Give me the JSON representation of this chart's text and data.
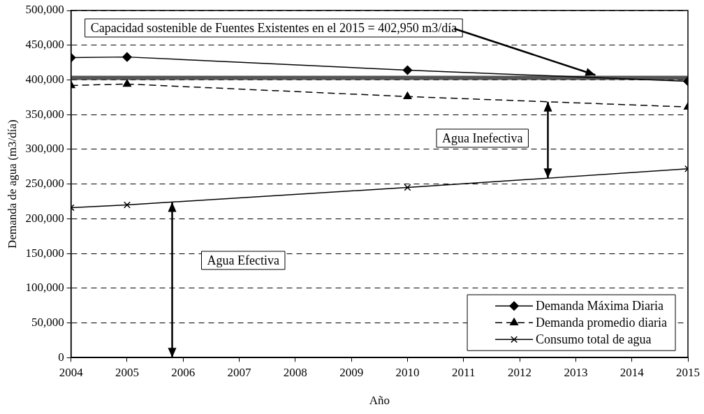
{
  "chart_data": {
    "type": "line",
    "xlabel": "Año",
    "ylabel": "Demanda de agua (m3/día)",
    "x": [
      2004,
      2005,
      2010,
      2015
    ],
    "xlim": [
      2004,
      2015
    ],
    "xticks": [
      2004,
      2005,
      2006,
      2007,
      2008,
      2009,
      2010,
      2011,
      2012,
      2013,
      2014,
      2015
    ],
    "ylim": [
      0,
      500000
    ],
    "yticks": [
      0,
      {
        "value": 50000,
        "label": "50,000"
      },
      {
        "value": 100000,
        "label": "100,000"
      },
      {
        "value": 150000,
        "label": "150,000"
      },
      {
        "value": 200000,
        "label": "200,000"
      },
      {
        "value": 250000,
        "label": "250,000"
      },
      {
        "value": 300000,
        "label": "300,000"
      },
      {
        "value": 350000,
        "label": "350,000"
      },
      {
        "value": 400000,
        "label": "400,000"
      },
      {
        "value": 450000,
        "label": "450,000"
      },
      {
        "value": 500000,
        "label": "500,000"
      }
    ],
    "grid": "y",
    "legend": "bottom right",
    "series": [
      {
        "name": "Demanda Máxima Diaria",
        "color": "#000000",
        "marker": "diamond",
        "line_style": "solid",
        "values": [
          432000,
          433000,
          414000,
          398000
        ]
      },
      {
        "name": "Demanda promedio diaria",
        "color": "#000000",
        "marker": "triangle",
        "line_style": "dashed",
        "values": [
          392000,
          394000,
          376000,
          361000
        ]
      },
      {
        "name": "Consumo total de agua",
        "color": "#000000",
        "marker": "cross",
        "line_style": "solid",
        "values": [
          216000,
          220000,
          245000,
          272000
        ]
      }
    ],
    "ref_lines": [
      {
        "axis": "y",
        "value": 402950,
        "label": "Capacidad sostenible de Fuentes Existentes en el 2015 = 402,950 m3/día",
        "color": "#555555"
      }
    ],
    "annotations": [
      "Agua Efectiva",
      "Agua Inefectiva"
    ]
  }
}
